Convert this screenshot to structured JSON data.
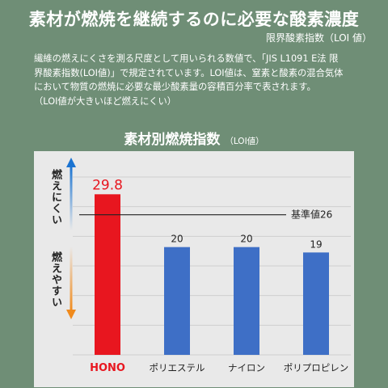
{
  "header": {
    "title": "素材が燃焼を継続するのに必要な酸素濃度",
    "subtitle": "限界酸素指数（LOI 値）"
  },
  "description": [
    "繊維の燃えにくさを測る尺度として用いられる数値で、「JIS L1091 E法 限",
    "界酸素指数(LOI値)」で規定されています。LOI値は、窒素と酸素の混合気体",
    "において物質の燃焼に必要な最少酸素量の容積百分率で表されます。",
    "（LOI値が大きいほど燃えにくい）"
  ],
  "chart_title": {
    "main": "素材別燃焼指数",
    "unit": "（LOI値）"
  },
  "axis_words": {
    "up": "燃えにくい",
    "down": "燃えやすい"
  },
  "colors": {
    "background": "#6f8e76",
    "panel": "#e9e9e9",
    "highlight": "#e8161f",
    "bar": "#3e6fc6",
    "arrow_up": "#1a73d1",
    "arrow_down": "#f08a1c"
  },
  "chart_data": {
    "type": "bar",
    "title": "素材別燃焼指数",
    "categories": [
      "HONO",
      "ポリエステル",
      "ナイロン",
      "ポリプロピレン"
    ],
    "values": [
      29.8,
      20,
      20,
      19
    ],
    "value_labels": [
      "29.8",
      "20",
      "20",
      "19"
    ],
    "highlight_index": 0,
    "reference_line": {
      "value": 26,
      "label": "基準値26"
    },
    "ylim": [
      0,
      33
    ],
    "grid": true,
    "xlabel": "",
    "ylabel": ""
  }
}
